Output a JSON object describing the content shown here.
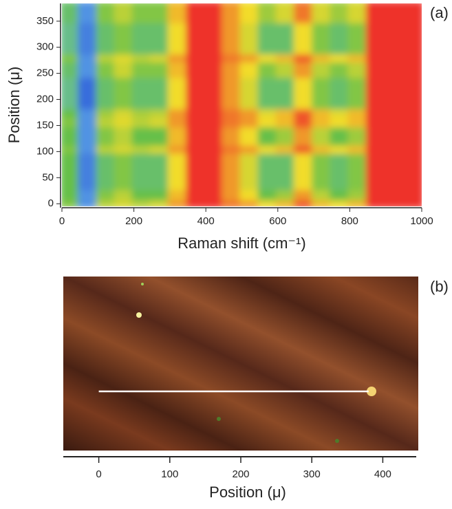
{
  "chart_data": [
    {
      "type": "heatmap",
      "panel_label": "(a)",
      "xlabel": "Raman shift (cm⁻¹)",
      "ylabel": "Position (μ)",
      "xlim": [
        0,
        1000
      ],
      "xticks": [
        0,
        200,
        400,
        600,
        800,
        1000
      ],
      "ylim": [
        -5,
        384
      ],
      "yticks": [
        0,
        50,
        100,
        150,
        200,
        250,
        300,
        350
      ],
      "x_edges": [
        0,
        50,
        100,
        150,
        200,
        250,
        300,
        350,
        400,
        450,
        500,
        550,
        600,
        650,
        700,
        750,
        800,
        850,
        900,
        950,
        1000
      ],
      "y_edges": [
        -5,
        10,
        30,
        100,
        115,
        150,
        170,
        185,
        245,
        275,
        290,
        350,
        384
      ],
      "clim": [
        0,
        1
      ],
      "colormap": [
        "#2c5ad8",
        "#69b9ea",
        "#66c04a",
        "#f2dc2a",
        "#ee3329"
      ],
      "values": [
        [
          0.55,
          0.15,
          0.65,
          0.7,
          0.65,
          0.7,
          0.85,
          1,
          1,
          0.9,
          0.85,
          0.75,
          0.8,
          0.95,
          0.8,
          0.75,
          0.8,
          1,
          1,
          1
        ],
        [
          0.5,
          0.15,
          0.55,
          0.65,
          0.5,
          0.5,
          0.8,
          1,
          1,
          0.85,
          0.75,
          0.5,
          0.6,
          0.85,
          0.65,
          0.5,
          0.6,
          1,
          1,
          1
        ],
        [
          0.5,
          0.1,
          0.45,
          0.55,
          0.45,
          0.45,
          0.75,
          1,
          1,
          0.85,
          0.7,
          0.45,
          0.45,
          0.75,
          0.55,
          0.45,
          0.55,
          1,
          1,
          1
        ],
        [
          0.55,
          0.15,
          0.65,
          0.7,
          0.65,
          0.7,
          0.85,
          1,
          1,
          0.9,
          0.85,
          0.75,
          0.8,
          0.95,
          0.8,
          0.75,
          0.8,
          1,
          1,
          1
        ],
        [
          0.5,
          0.15,
          0.55,
          0.65,
          0.5,
          0.5,
          0.8,
          1,
          1,
          0.85,
          0.75,
          0.5,
          0.6,
          0.85,
          0.65,
          0.5,
          0.6,
          1,
          1,
          1
        ],
        [
          0.55,
          0.15,
          0.65,
          0.72,
          0.65,
          0.7,
          0.85,
          1,
          1,
          0.9,
          0.85,
          0.75,
          0.8,
          0.95,
          0.8,
          0.75,
          0.8,
          1,
          1,
          1
        ],
        [
          0.5,
          0.15,
          0.6,
          0.7,
          0.62,
          0.65,
          0.85,
          1,
          1,
          0.9,
          0.85,
          0.72,
          0.8,
          0.95,
          0.8,
          0.72,
          0.8,
          1,
          1,
          1
        ],
        [
          0.4,
          0.05,
          0.45,
          0.55,
          0.45,
          0.45,
          0.75,
          1,
          1,
          0.85,
          0.7,
          0.45,
          0.45,
          0.75,
          0.55,
          0.45,
          0.55,
          1,
          1,
          1
        ],
        [
          0.45,
          0.15,
          0.55,
          0.68,
          0.55,
          0.55,
          0.8,
          1,
          1,
          0.85,
          0.75,
          0.55,
          0.65,
          0.85,
          0.65,
          0.55,
          0.65,
          1,
          1,
          1
        ],
        [
          0.55,
          0.15,
          0.65,
          0.72,
          0.65,
          0.7,
          0.85,
          1,
          1,
          0.9,
          0.85,
          0.75,
          0.8,
          0.95,
          0.8,
          0.75,
          0.8,
          1,
          1,
          1
        ],
        [
          0.4,
          0.1,
          0.45,
          0.55,
          0.45,
          0.45,
          0.75,
          1,
          1,
          0.85,
          0.7,
          0.45,
          0.45,
          0.75,
          0.55,
          0.45,
          0.55,
          1,
          1,
          1
        ],
        [
          0.45,
          0.15,
          0.55,
          0.65,
          0.55,
          0.55,
          0.8,
          1,
          1,
          0.85,
          0.75,
          0.6,
          0.7,
          0.9,
          0.7,
          0.6,
          0.7,
          1,
          1,
          1
        ]
      ]
    },
    {
      "type": "image",
      "panel_label": "(b)",
      "xlabel": "Position (μ)",
      "xlim": [
        -50,
        450
      ],
      "xticks": [
        0,
        100,
        200,
        300,
        400
      ],
      "scan_line": [
        0,
        380
      ]
    }
  ]
}
